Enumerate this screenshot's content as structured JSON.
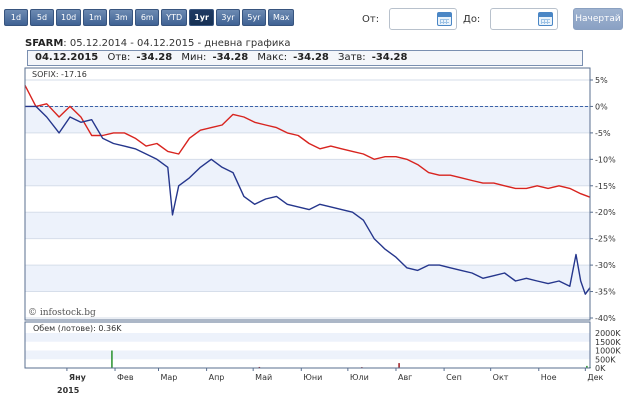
{
  "toolbar": {
    "periods": [
      "1d",
      "5d",
      "10d",
      "1m",
      "3m",
      "6m",
      "YTD",
      "1yr",
      "3yr",
      "5yr",
      "Max"
    ],
    "active_index": 7,
    "from_label": "От:",
    "to_label": "До:",
    "from_value": "",
    "to_value": "",
    "start_label": "Начертай"
  },
  "title": {
    "symbol": "SFARM",
    "range": ": 05.12.2014 - 04.12.2015 - дневна графика"
  },
  "info": {
    "date": "04.12.2015",
    "open_label": "Отв:",
    "open": "-34.28",
    "min_label": "Мин:",
    "min": "-34.28",
    "max_label": "Макс:",
    "max": "-34.28",
    "close_label": "Затв:",
    "close": "-34.28"
  },
  "colors": {
    "main_series": "#25368c",
    "index_series": "#d8241f",
    "volume": "#27912b",
    "volume_alt": "#9c1c20",
    "band": "#edf2fb"
  },
  "chart_data": {
    "type": "line",
    "x_range": [
      "2014-12-05",
      "2015-12-04"
    ],
    "ylim": [
      -40,
      5
    ],
    "yticks": [
      "5%",
      "0%",
      "-5%",
      "-10%",
      "-15%",
      "-20%",
      "-25%",
      "-30%",
      "-35%",
      "-40%"
    ],
    "month_labels": [
      "Яну",
      "Фев",
      "Мар",
      "Апр",
      "Май",
      "Юни",
      "Юли",
      "Авг",
      "Сеп",
      "Окт",
      "Ное",
      "Дек"
    ],
    "year_label": "2015",
    "watermark": "© infostock.bg",
    "series": [
      {
        "name": "SOFIX: -17.16",
        "x": [
          "2014-12-05",
          "2014-12-12",
          "2014-12-19",
          "2014-12-27",
          "2015-01-03",
          "2015-01-10",
          "2015-01-17",
          "2015-01-24",
          "2015-01-31",
          "2015-02-07",
          "2015-02-14",
          "2015-02-21",
          "2015-02-28",
          "2015-03-07",
          "2015-03-14",
          "2015-03-21",
          "2015-03-28",
          "2015-04-04",
          "2015-04-11",
          "2015-04-18",
          "2015-04-25",
          "2015-05-02",
          "2015-05-09",
          "2015-05-16",
          "2015-05-23",
          "2015-05-30",
          "2015-06-06",
          "2015-06-13",
          "2015-06-20",
          "2015-06-27",
          "2015-07-04",
          "2015-07-11",
          "2015-07-18",
          "2015-07-25",
          "2015-08-01",
          "2015-08-08",
          "2015-08-15",
          "2015-08-22",
          "2015-08-29",
          "2015-09-05",
          "2015-09-12",
          "2015-09-19",
          "2015-09-26",
          "2015-10-03",
          "2015-10-10",
          "2015-10-17",
          "2015-10-24",
          "2015-10-31",
          "2015-11-07",
          "2015-11-14",
          "2015-11-21",
          "2015-11-28",
          "2015-12-04"
        ],
        "values": [
          4.0,
          0.0,
          0.5,
          -2.0,
          0.0,
          -2.0,
          -5.5,
          -5.5,
          -5.0,
          -5.0,
          -6.0,
          -7.5,
          -7.0,
          -8.5,
          -9.0,
          -6.0,
          -4.5,
          -4.0,
          -3.5,
          -1.5,
          -2.0,
          -3.0,
          -3.5,
          -4.0,
          -5.0,
          -5.5,
          -7.0,
          -8.0,
          -7.5,
          -8.0,
          -8.5,
          -9.0,
          -10.0,
          -9.5,
          -9.5,
          -10.0,
          -11.0,
          -12.5,
          -13.0,
          -13.0,
          -13.5,
          -14.0,
          -14.5,
          -14.5,
          -15.0,
          -15.5,
          -15.5,
          -15.0,
          -15.5,
          -15.0,
          -15.5,
          -16.5,
          -17.16
        ]
      },
      {
        "name": "SFARM",
        "x": [
          "2014-12-05",
          "2014-12-12",
          "2014-12-19",
          "2014-12-27",
          "2015-01-03",
          "2015-01-10",
          "2015-01-17",
          "2015-01-24",
          "2015-01-31",
          "2015-02-07",
          "2015-02-14",
          "2015-02-21",
          "2015-02-28",
          "2015-03-07",
          "2015-03-10",
          "2015-03-14",
          "2015-03-21",
          "2015-03-28",
          "2015-04-04",
          "2015-04-11",
          "2015-04-18",
          "2015-04-25",
          "2015-05-02",
          "2015-05-09",
          "2015-05-16",
          "2015-05-23",
          "2015-05-30",
          "2015-06-06",
          "2015-06-13",
          "2015-06-20",
          "2015-06-27",
          "2015-07-04",
          "2015-07-11",
          "2015-07-18",
          "2015-07-25",
          "2015-08-01",
          "2015-08-08",
          "2015-08-15",
          "2015-08-22",
          "2015-08-29",
          "2015-09-05",
          "2015-09-12",
          "2015-09-19",
          "2015-09-26",
          "2015-10-03",
          "2015-10-10",
          "2015-10-17",
          "2015-10-24",
          "2015-10-31",
          "2015-11-07",
          "2015-11-14",
          "2015-11-21",
          "2015-11-25",
          "2015-11-28",
          "2015-12-01",
          "2015-12-04"
        ],
        "values": [
          0.0,
          0.0,
          -2.0,
          -5.0,
          -2.0,
          -3.0,
          -2.5,
          -6.0,
          -7.0,
          -7.5,
          -8.0,
          -9.0,
          -10.0,
          -11.5,
          -20.5,
          -15.0,
          -13.5,
          -11.5,
          -10.0,
          -11.5,
          -12.5,
          -17.0,
          -18.5,
          -17.5,
          -17.0,
          -18.5,
          -19.0,
          -19.5,
          -18.5,
          -19.0,
          -19.5,
          -20.0,
          -21.5,
          -25.0,
          -27.0,
          -28.5,
          -30.5,
          -31.0,
          -30.0,
          -30.0,
          -30.5,
          -31.0,
          -31.5,
          -32.5,
          -32.0,
          -31.5,
          -33.0,
          -32.5,
          -33.0,
          -33.5,
          -33.0,
          -34.0,
          -28.0,
          -33.0,
          -35.5,
          -34.28
        ]
      }
    ],
    "volume": {
      "label": "Обем (лотове): 0.36K",
      "ylim": [
        0,
        2000
      ],
      "yticks": [
        "2000K",
        "1500K",
        "1000K",
        "500K",
        "0K"
      ],
      "bars": [
        {
          "x": "2015-01-30",
          "value": 1000,
          "color": "volume"
        },
        {
          "x": "2015-05-05",
          "value": 60,
          "color": "volume_alt"
        },
        {
          "x": "2015-07-10",
          "value": 50,
          "color": "volume_alt"
        },
        {
          "x": "2015-08-03",
          "value": 280,
          "color": "volume_alt"
        },
        {
          "x": "2015-12-02",
          "value": 120,
          "color": "volume"
        },
        {
          "x": "2015-12-04",
          "value": 60,
          "color": "volume"
        }
      ]
    }
  }
}
